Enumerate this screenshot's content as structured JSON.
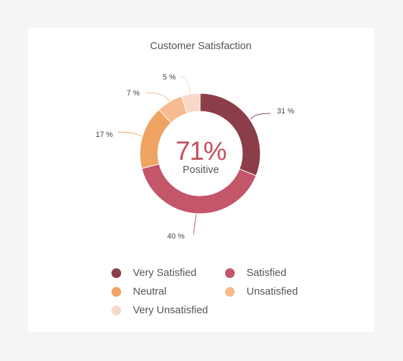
{
  "chart_data": {
    "type": "pie",
    "title": "Customer Satisfaction",
    "center": {
      "value": "71%",
      "label": "Positive"
    },
    "slices": [
      {
        "name": "Very Satisfied",
        "value": 31,
        "label": "31 %",
        "color": "#8b3e4a"
      },
      {
        "name": "Satisfied",
        "value": 40,
        "label": "40 %",
        "color": "#c4566a"
      },
      {
        "name": "Neutral",
        "value": 17,
        "label": "17 %",
        "color": "#f0a463"
      },
      {
        "name": "Unsatisfied",
        "value": 7,
        "label": "7 %",
        "color": "#f6bb8f"
      },
      {
        "name": "Very Unsatisfied",
        "value": 5,
        "label": "5 %",
        "color": "#f8d8c6"
      }
    ],
    "legend_placement": "bottom"
  }
}
